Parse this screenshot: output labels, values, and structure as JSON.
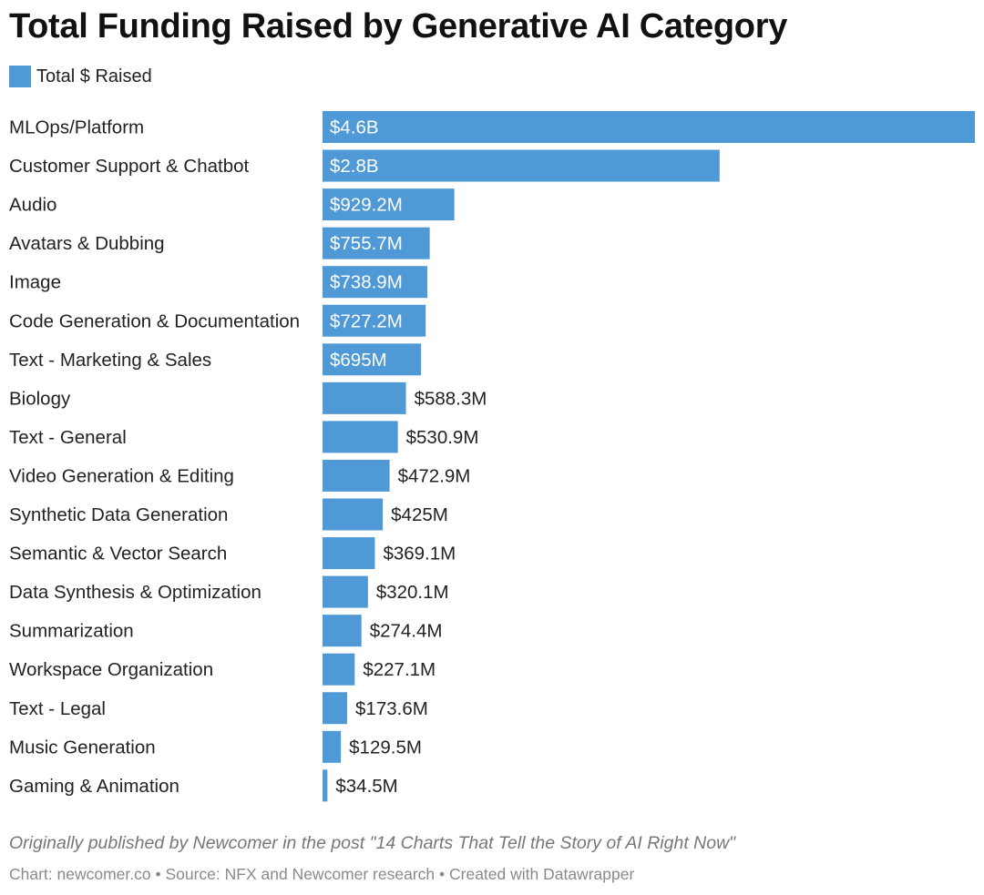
{
  "colors": {
    "bar": "#4f9ad6"
  },
  "chart_data": {
    "type": "bar",
    "orientation": "horizontal",
    "title": "Total Funding Raised by Generative AI Category",
    "legend": [
      "Total $ Raised"
    ],
    "unit": "USD millions",
    "categories": [
      "MLOps/Platform",
      "Customer Support & Chatbot",
      "Audio",
      "Avatars & Dubbing",
      "Image",
      "Code Generation & Documentation",
      "Text - Marketing & Sales",
      "Biology",
      "Text - General",
      "Video Generation & Editing",
      "Synthetic Data Generation",
      "Semantic & Vector Search",
      "Data Synthesis & Optimization",
      "Summarization",
      "Workspace Organization",
      "Text - Legal",
      "Music Generation",
      "Gaming & Animation"
    ],
    "values": [
      4600,
      2800,
      929.2,
      755.7,
      738.9,
      727.2,
      695,
      588.3,
      530.9,
      472.9,
      425,
      369.1,
      320.1,
      274.4,
      227.1,
      173.6,
      129.5,
      34.5
    ],
    "value_labels": [
      "$4.6B",
      "$2.8B",
      "$929.2M",
      "$755.7M",
      "$738.9M",
      "$727.2M",
      "$695M",
      "$588.3M",
      "$530.9M",
      "$472.9M",
      "$425M",
      "$369.1M",
      "$320.1M",
      "$274.4M",
      "$227.1M",
      "$173.6M",
      "$129.5M",
      "$34.5M"
    ],
    "xlim": [
      0,
      4600
    ]
  },
  "footer": {
    "note": "Originally published by Newcomer in the post \"14 Charts That Tell the Story of AI Right Now\"",
    "credits": "Chart: newcomer.co • Source: NFX and Newcomer research • Created with Datawrapper"
  }
}
